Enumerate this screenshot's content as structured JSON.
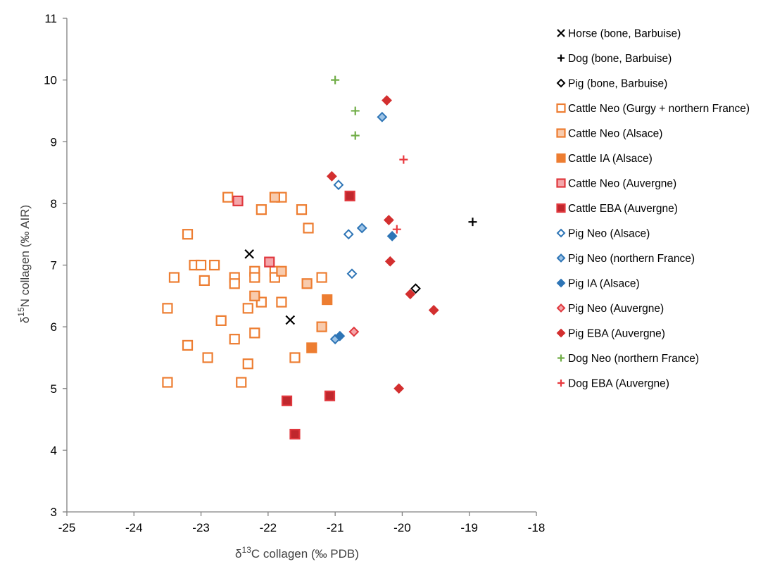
{
  "chart_data": {
    "type": "scatter",
    "xlabel": {
      "prefix": "δ",
      "sup": "13",
      "rest": "C collagen (‰ PDB)"
    },
    "ylabel": {
      "prefix": "δ",
      "sup": "15",
      "rest": "N collagen (‰ AIR)"
    },
    "xlim": [
      -25,
      -18
    ],
    "ylim": [
      3,
      11
    ],
    "xticks": [
      "-25",
      "-24",
      "-23",
      "-22",
      "-21",
      "-20",
      "-19",
      "-18"
    ],
    "yticks": [
      "3",
      "4",
      "5",
      "6",
      "7",
      "8",
      "9",
      "10",
      "11"
    ],
    "grid": false,
    "legend_position": "right",
    "series": [
      {
        "name": "Horse (bone, Barbuise)",
        "marker": "x",
        "stroke": "#000000",
        "fill": "none",
        "points": [
          [
            -22.28,
            7.18
          ],
          [
            -21.67,
            6.11
          ]
        ]
      },
      {
        "name": "Dog (bone, Barbuise)",
        "marker": "plus",
        "stroke": "#000000",
        "fill": "none",
        "points": [
          [
            -18.95,
            7.7
          ]
        ]
      },
      {
        "name": "Pig (bone, Barbuise)",
        "marker": "diamond",
        "stroke": "#000000",
        "fill": "#ffffff",
        "points": [
          [
            -19.8,
            6.62
          ]
        ]
      },
      {
        "name": "Cattle Neo (Gurgy + northern France)",
        "marker": "square",
        "stroke": "#ED7D31",
        "fill": "#ffffff",
        "points": [
          [
            -23.2,
            7.5
          ],
          [
            -23.4,
            6.8
          ],
          [
            -23.1,
            7.0
          ],
          [
            -23.0,
            7.0
          ],
          [
            -22.95,
            6.75
          ],
          [
            -22.8,
            7.0
          ],
          [
            -22.6,
            8.1
          ],
          [
            -22.5,
            6.8
          ],
          [
            -22.5,
            6.7
          ],
          [
            -22.2,
            6.9
          ],
          [
            -22.2,
            6.8
          ],
          [
            -22.1,
            7.9
          ],
          [
            -21.9,
            6.9
          ],
          [
            -21.9,
            6.8
          ],
          [
            -21.8,
            8.1
          ],
          [
            -21.5,
            7.9
          ],
          [
            -21.4,
            7.6
          ],
          [
            -21.2,
            6.8
          ],
          [
            -23.5,
            6.3
          ],
          [
            -22.7,
            6.1
          ],
          [
            -22.3,
            6.3
          ],
          [
            -22.2,
            5.9
          ],
          [
            -22.1,
            6.4
          ],
          [
            -21.8,
            6.4
          ],
          [
            -23.2,
            5.7
          ],
          [
            -22.9,
            5.5
          ],
          [
            -22.5,
            5.8
          ],
          [
            -22.3,
            5.4
          ],
          [
            -21.6,
            5.5
          ],
          [
            -23.5,
            5.1
          ],
          [
            -22.4,
            5.1
          ]
        ]
      },
      {
        "name": "Cattle Neo (Alsace)",
        "marker": "square",
        "stroke": "#ED7D31",
        "fill": "#F8CBAD",
        "points": [
          [
            -21.9,
            8.1
          ],
          [
            -22.2,
            6.5
          ],
          [
            -21.8,
            6.9
          ],
          [
            -21.42,
            6.7
          ],
          [
            -21.2,
            6.0
          ]
        ]
      },
      {
        "name": "Cattle IA (Alsace)",
        "marker": "square",
        "stroke": "#ED7D31",
        "fill": "#ED7D31",
        "points": [
          [
            -21.12,
            6.44
          ],
          [
            -21.35,
            5.66
          ]
        ]
      },
      {
        "name": "Cattle Neo (Auvergne)",
        "marker": "square",
        "stroke": "#E0383E",
        "fill": "#F4A6AA",
        "points": [
          [
            -22.45,
            8.04
          ],
          [
            -21.98,
            7.05
          ]
        ]
      },
      {
        "name": "Cattle EBA (Auvergne)",
        "marker": "square",
        "stroke": "#E0383E",
        "fill": "#C0272D",
        "points": [
          [
            -20.78,
            8.12
          ],
          [
            -21.72,
            4.8
          ],
          [
            -21.08,
            4.88
          ],
          [
            -21.6,
            4.26
          ]
        ]
      },
      {
        "name": "Pig Neo (Alsace)",
        "marker": "diamond",
        "stroke": "#2E75B6",
        "fill": "#ffffff",
        "points": [
          [
            -20.95,
            8.3
          ],
          [
            -20.8,
            7.5
          ],
          [
            -20.75,
            6.86
          ]
        ]
      },
      {
        "name": "Pig Neo (northern France)",
        "marker": "diamond",
        "stroke": "#2E75B6",
        "fill": "#9DC3E6",
        "points": [
          [
            -20.3,
            9.4
          ],
          [
            -20.6,
            7.6
          ],
          [
            -21.0,
            5.8
          ]
        ]
      },
      {
        "name": "Pig IA (Alsace)",
        "marker": "diamond",
        "stroke": "#2E75B6",
        "fill": "#2E75B6",
        "points": [
          [
            -20.15,
            7.47
          ],
          [
            -20.93,
            5.85
          ]
        ]
      },
      {
        "name": "Pig Neo (Auvergne)",
        "marker": "diamond",
        "stroke": "#E0383E",
        "fill": "#F4A6AA",
        "points": [
          [
            -20.72,
            5.92
          ]
        ]
      },
      {
        "name": "Pig EBA (Auvergne)",
        "marker": "diamond",
        "stroke": "#D32F2F",
        "fill": "#D32F2F",
        "points": [
          [
            -20.23,
            9.67
          ],
          [
            -21.05,
            8.44
          ],
          [
            -20.2,
            7.73
          ],
          [
            -20.18,
            7.06
          ],
          [
            -19.88,
            6.53
          ],
          [
            -19.53,
            6.27
          ],
          [
            -20.05,
            5.0
          ]
        ]
      },
      {
        "name": "Dog Neo (northern France)",
        "marker": "plus",
        "stroke": "#70AD47",
        "fill": "none",
        "points": [
          [
            -21.0,
            10.0
          ],
          [
            -20.7,
            9.5
          ],
          [
            -20.7,
            9.1
          ]
        ]
      },
      {
        "name": "Dog EBA (Auvergne)",
        "marker": "plus",
        "stroke": "#E8393E",
        "fill": "none",
        "points": [
          [
            -19.98,
            8.71
          ],
          [
            -20.08,
            7.58
          ]
        ]
      }
    ]
  }
}
